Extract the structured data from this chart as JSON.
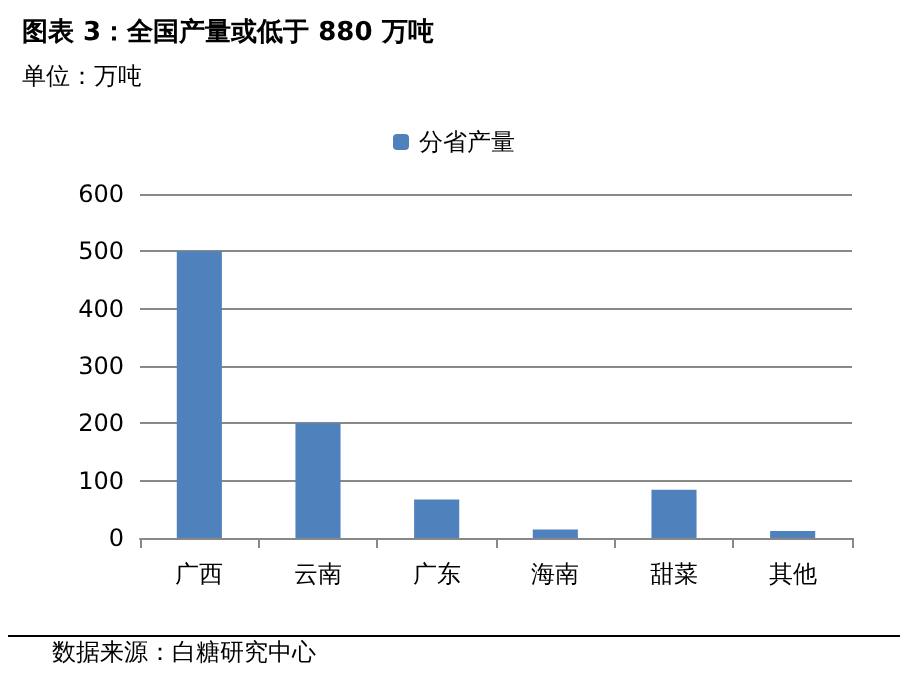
{
  "chart_data": {
    "type": "bar",
    "title": "图表 3：全国产量或低于 880 万吨",
    "subtitle": "单位：万吨",
    "categories": [
      "广西",
      "云南",
      "广东",
      "海南",
      "甜菜",
      "其他"
    ],
    "series": [
      {
        "name": "分省产量",
        "color": "#4f81bd",
        "values": [
          500,
          200,
          67,
          15,
          84,
          12
        ]
      }
    ],
    "ylim": [
      0,
      600
    ],
    "yticks": [
      0,
      100,
      200,
      300,
      400,
      500,
      600
    ],
    "grid": "y",
    "legend": "top",
    "annotations": [
      "数据来源：白糖研究中心"
    ]
  }
}
